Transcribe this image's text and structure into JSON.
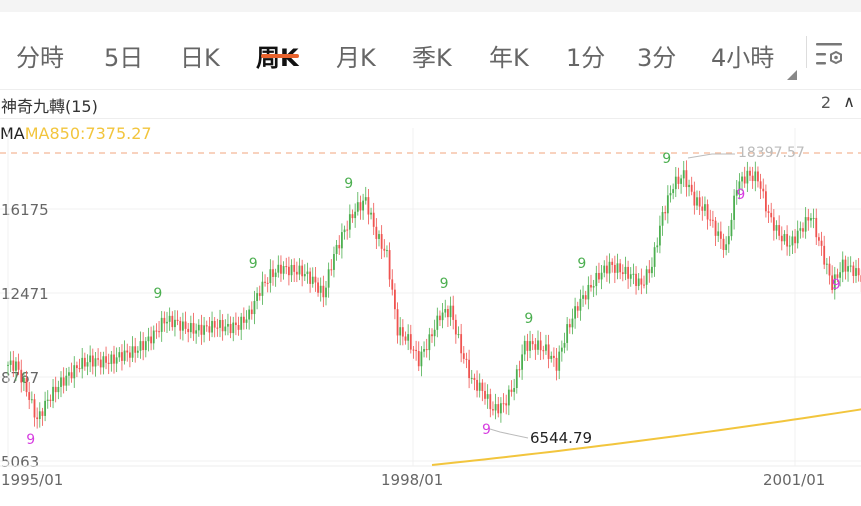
{
  "tabs": [
    {
      "label": "分時",
      "active": false
    },
    {
      "label": "5日",
      "active": false
    },
    {
      "label": "日K",
      "active": false
    },
    {
      "label": "周K",
      "active": true
    },
    {
      "label": "月K",
      "active": false
    },
    {
      "label": "季K",
      "active": false
    },
    {
      "label": "年K",
      "active": false
    },
    {
      "label": "1分",
      "active": false
    },
    {
      "label": "3分",
      "active": false
    },
    {
      "label": "4小時",
      "active": false
    }
  ],
  "settings_icon": "list-settings-icon",
  "accent_color": "#e8622c",
  "indicator": {
    "name": "神奇九轉(15)",
    "count": "2",
    "toggle_icon": "chevron-up-icon"
  },
  "ma": {
    "label": "MA",
    "ma850": "MA850:7375.27"
  },
  "chart_data": {
    "type": "candlestick",
    "period": "weekly",
    "y_ticks": [
      16175,
      12471,
      8767,
      5063
    ],
    "y_tick_labels": [
      "16175",
      "12471",
      "8767",
      "5063"
    ],
    "ylim": [
      5063,
      19000
    ],
    "x_tick_labels": [
      "1995/01",
      "1998/01",
      "2001/01"
    ],
    "start": "1995/01",
    "closes_monthly": [
      9300,
      8200,
      6870,
      7750,
      8400,
      8850,
      9300,
      9500,
      9430,
      9500,
      9736,
      9870,
      10180,
      10620,
      11280,
      11190,
      10930,
      10840,
      10930,
      11060,
      10930,
      11060,
      11500,
      12600,
      13260,
      13570,
      13480,
      13400,
      13040,
      12380,
      14150,
      15250,
      16130,
      16570,
      15030,
      14150,
      10840,
      10400,
      9500,
      10400,
      11500,
      11720,
      9960,
      8630,
      8190,
      7310,
      7530,
      8410,
      10180,
      10180,
      9960,
      9300,
      10840,
      11940,
      12600,
      13260,
      13700,
      13480,
      13260,
      12820,
      13700,
      15910,
      17230,
      17670,
      16570,
      16130,
      15250,
      14370,
      17230,
      17670,
      17540,
      15910,
      15030,
      14590,
      15250,
      15910,
      14370,
      12820,
      13700,
      13480,
      13040
    ],
    "max_label": "18397.57",
    "max": 18397.57,
    "min_label": "6544.79",
    "min": 6544.79,
    "ma850": {
      "name": "MA850",
      "start_month": 40,
      "start_value": 4885,
      "end_value": 7375.27
    },
    "up_color": "#4caf50",
    "down_color": "#ef5350",
    "ma_color": "#f2c53d",
    "td_labels": [
      {
        "m": 2,
        "t": "9",
        "c": "#d63ee0"
      },
      {
        "m": 14,
        "t": "9",
        "c": "#4caf50"
      },
      {
        "m": 23,
        "t": "9",
        "c": "#4caf50"
      },
      {
        "m": 32,
        "t": "9",
        "c": "#4caf50"
      },
      {
        "m": 41,
        "t": "9",
        "c": "#4caf50"
      },
      {
        "m": 45,
        "t": "9",
        "c": "#d63ee0"
      },
      {
        "m": 49,
        "t": "9",
        "c": "#4caf50"
      },
      {
        "m": 54,
        "t": "9",
        "c": "#4caf50"
      },
      {
        "m": 62,
        "t": "9",
        "c": "#4caf50"
      },
      {
        "m": 69,
        "t": "9",
        "c": "#d63ee0"
      },
      {
        "m": 78,
        "t": "9",
        "c": "#d63ee0"
      }
    ]
  }
}
